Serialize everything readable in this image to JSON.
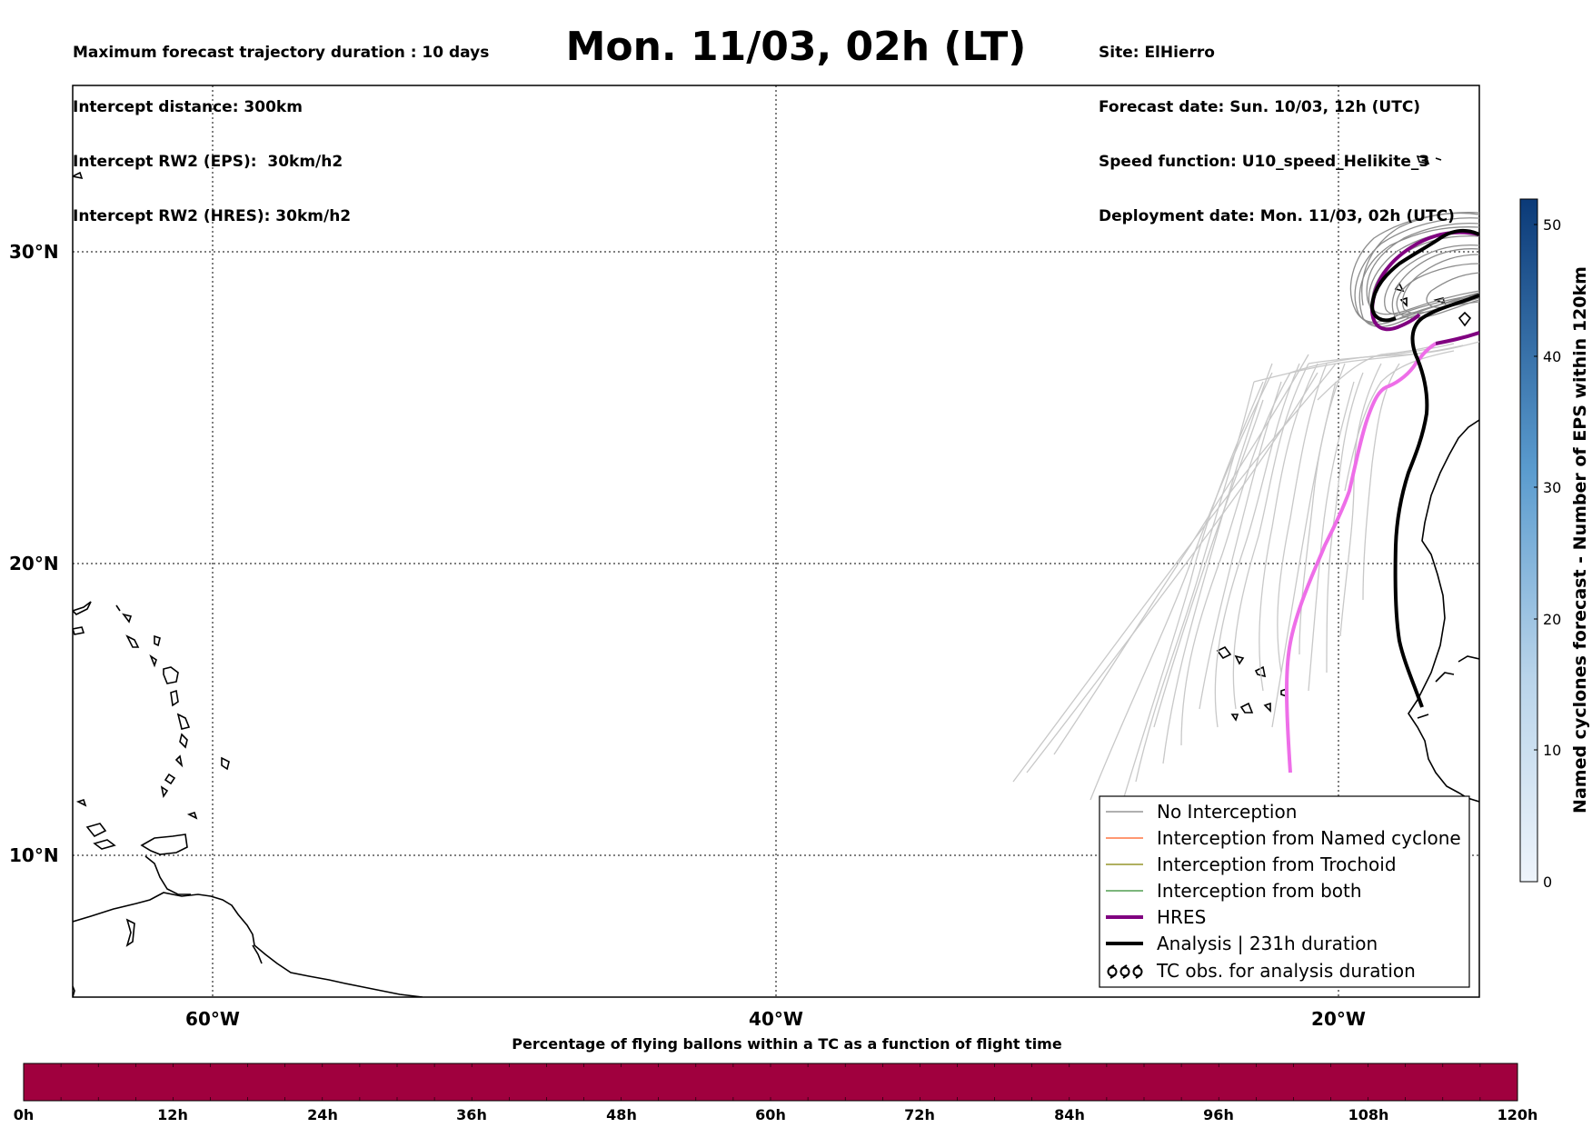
{
  "header": {
    "left_lines": [
      "Maximum forecast trajectory duration : 10 days",
      "Intercept distance: 300km",
      "Intercept RW2 (EPS):  30km/h2",
      "Intercept RW2 (HRES): 30km/h2"
    ],
    "title": "Mon. 11/03, 02h (LT)",
    "right_lines": [
      "Site: ElHierro",
      "Forecast date: Sun. 10/03, 12h (UTC)",
      "Speed function: U10_speed_Helikite_3",
      "Deployment date: Mon. 11/03, 02h (UTC)"
    ]
  },
  "map": {
    "lat_labels": [
      "30°N",
      "20°N",
      "10°N"
    ],
    "lon_labels": [
      "60°W",
      "40°W",
      "20°W"
    ]
  },
  "legend": {
    "items": [
      {
        "label": "No Interception",
        "color": "#808080"
      },
      {
        "label": "Interception from Named cyclone",
        "color": "#ff5a1f"
      },
      {
        "label": "Interception from Trochoid",
        "color": "#808000"
      },
      {
        "label": "Interception from both",
        "color": "#2e8b2e"
      },
      {
        "label": "HRES",
        "color": "#800080"
      },
      {
        "label": "Analysis | 231h duration",
        "color": "#000000"
      },
      {
        "label": "TC obs. for analysis duration",
        "icon": "cyclone-symbol-icon"
      }
    ]
  },
  "colorbar": {
    "label": "Named cyclones forecast - Number of EPS within 120km",
    "ticks": [
      "0",
      "10",
      "20",
      "30",
      "40",
      "50"
    ],
    "min": 0,
    "max": 52,
    "color_low": "#e8f0fa",
    "color_high": "#0b3a78"
  },
  "bottom_bar": {
    "title": "Percentage of flying ballons within a TC as a function of flight time",
    "ticks": [
      "0h",
      "12h",
      "24h",
      "36h",
      "48h",
      "60h",
      "72h",
      "84h",
      "96h",
      "108h",
      "120h"
    ],
    "color": "#a0003e"
  }
}
